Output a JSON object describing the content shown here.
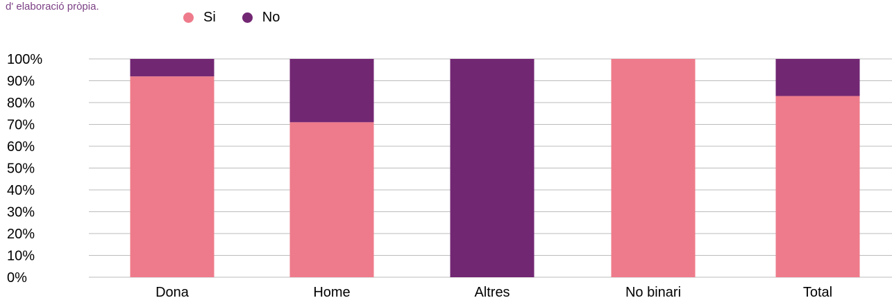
{
  "source_note": "d' elaboració pròpia.",
  "colors": {
    "si": "#ee7b8b",
    "no": "#722773",
    "grid": "#bbbbbb"
  },
  "chart_data": {
    "type": "bar",
    "stacked": true,
    "categories": [
      "Dona",
      "Home",
      "Altres",
      "No binari",
      "Total"
    ],
    "series": [
      {
        "name": "Si",
        "values": [
          92,
          71,
          0,
          100,
          83
        ]
      },
      {
        "name": "No",
        "values": [
          8,
          29,
          100,
          0,
          17
        ]
      }
    ],
    "ylim": [
      0,
      100
    ],
    "yticks": [
      "0%",
      "10%",
      "20%",
      "30%",
      "40%",
      "50%",
      "60%",
      "70%",
      "80%",
      "90%",
      "100%"
    ],
    "grid": true,
    "legend_position": "top-left",
    "xlabel": "",
    "ylabel": ""
  }
}
